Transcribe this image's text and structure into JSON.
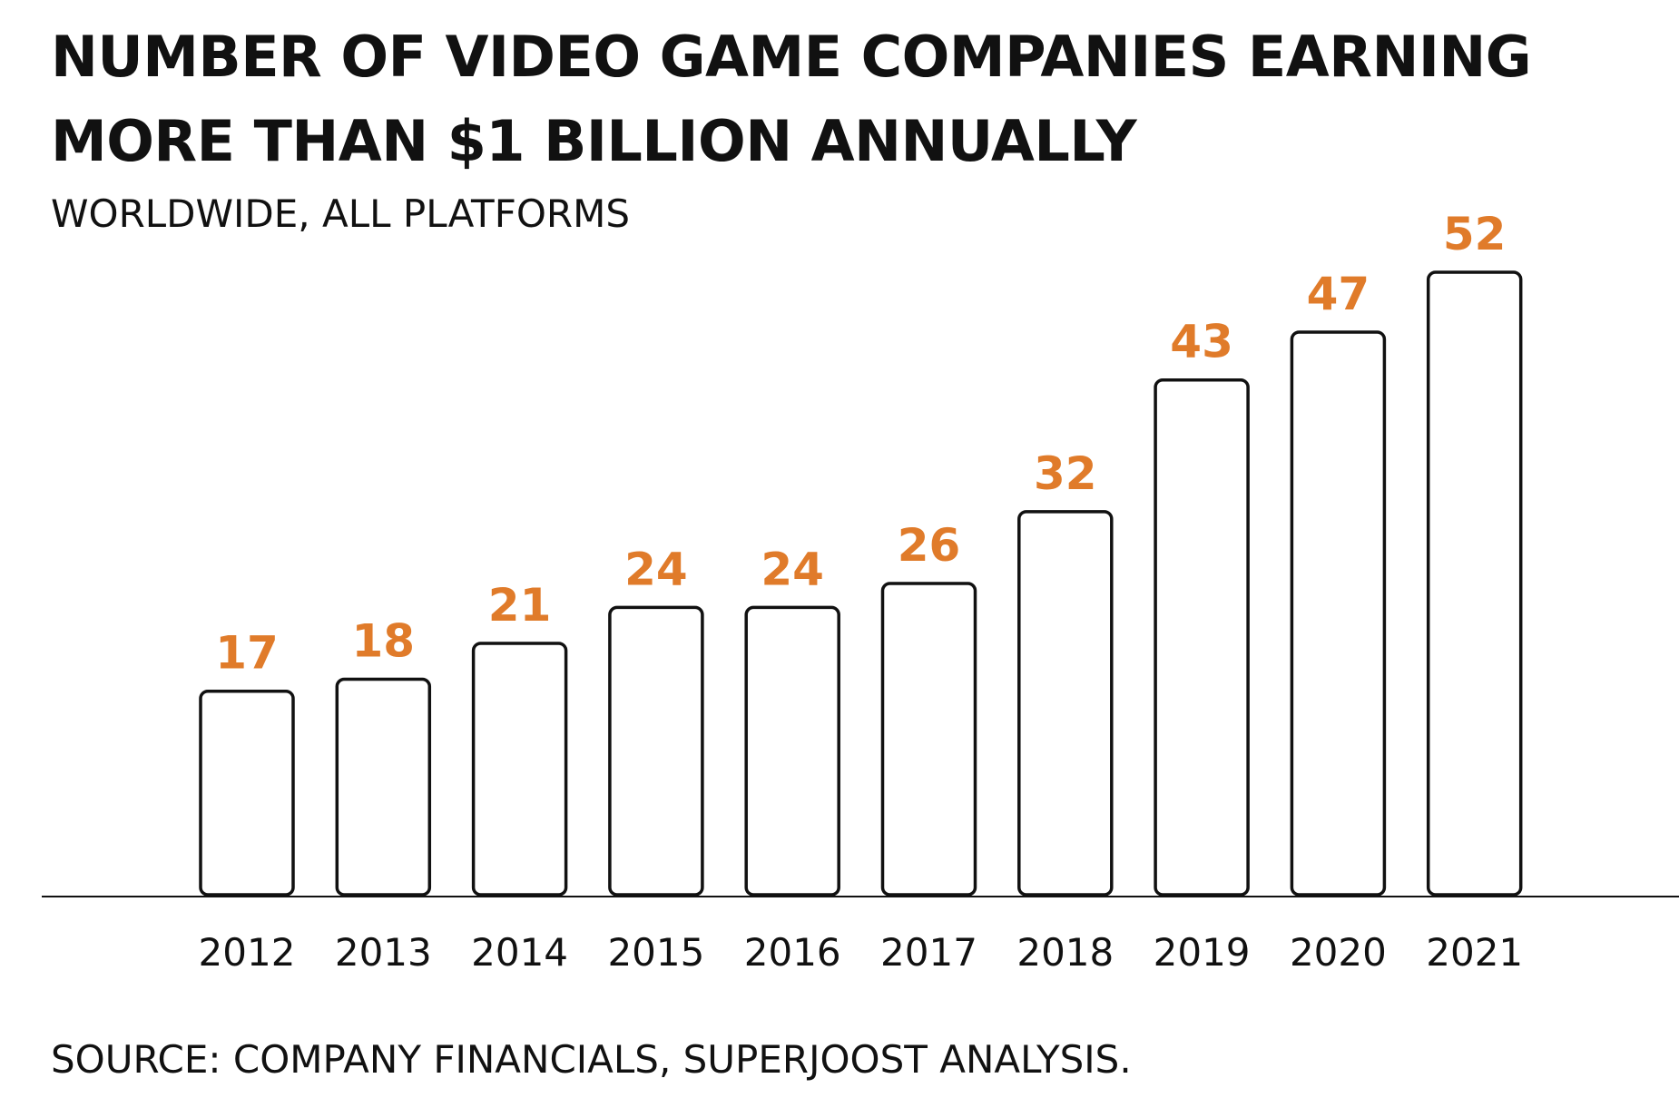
{
  "chart_data": {
    "type": "bar",
    "title": "NUMBER OF VIDEO GAME COMPANIES EARNING MORE THAN $1 BILLION ANNUALLY",
    "subtitle": "WORLDWIDE, ALL PLATFORMS",
    "source": "SOURCE: COMPANY FINANCIALS, SUPERJOOST ANALYSIS.",
    "categories": [
      "2012",
      "2013",
      "2014",
      "2015",
      "2016",
      "2017",
      "2018",
      "2019",
      "2020",
      "2021"
    ],
    "values": [
      17,
      18,
      21,
      24,
      24,
      26,
      32,
      43,
      47,
      52
    ],
    "xlabel": "",
    "ylabel": "",
    "ylim": [
      0,
      52
    ],
    "grid": false,
    "legend": "none",
    "colors": {
      "value_label": "#E07B2A",
      "bar_fill": "#FFFFFF",
      "bar_stroke": "#111111",
      "text": "#111111"
    }
  }
}
